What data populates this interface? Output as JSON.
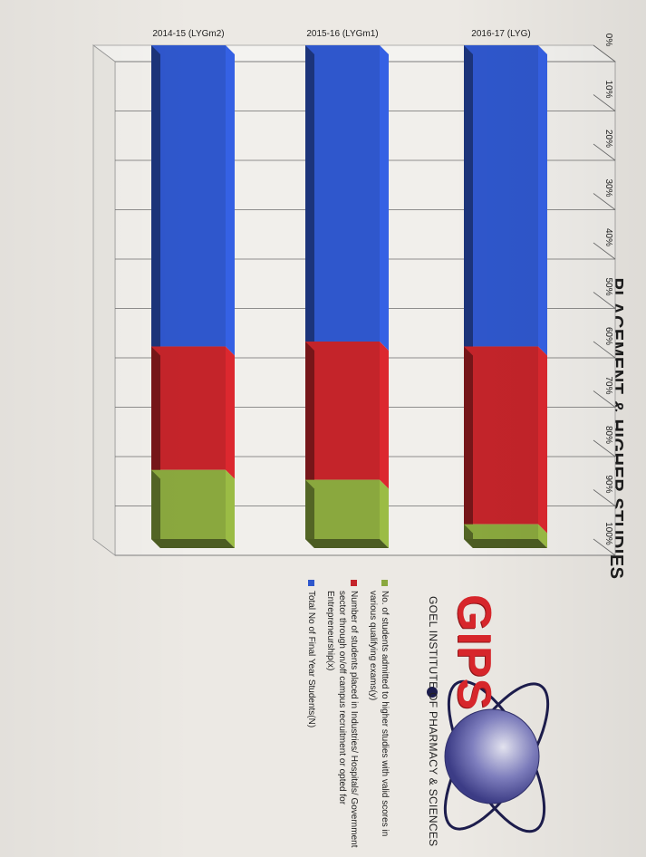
{
  "slide_title": "PLACEMENT & HIGHER STUDIES",
  "logo": {
    "text": "GIPS",
    "subtitle": "GOEL INSTITUTE OF PHARMACY & SCIENCES"
  },
  "colors": {
    "series1": "#2f57cc",
    "series2": "#c4242a",
    "series3": "#8aa83e"
  },
  "chart_data": {
    "type": "bar",
    "orientation": "horizontal",
    "stacked": "100%",
    "style": "3d",
    "categories": [
      "2016-17 (LYG)",
      "2015-16 (LYGm1)",
      "2014-15 (LYGm2)"
    ],
    "series": [
      {
        "name": "Total No of Final Year Students(N)",
        "values": [
          61,
          60,
          61
        ]
      },
      {
        "name": "Number of students placed in Industries/ Hospitals/ Government sector through on/off campus recruitment or opted for Entrepreneurship(x)",
        "values": [
          36,
          28,
          25
        ]
      },
      {
        "name": "No. of students admitted to higher studies with valid scores in various qualifying exams(y)",
        "values": [
          3,
          12,
          14
        ]
      }
    ],
    "x_ticks": [
      "0%",
      "10%",
      "20%",
      "30%",
      "40%",
      "50%",
      "60%",
      "70%",
      "80%",
      "90%",
      "100%"
    ],
    "xlim": [
      0,
      100
    ],
    "grid": true,
    "legend_position": "right"
  }
}
